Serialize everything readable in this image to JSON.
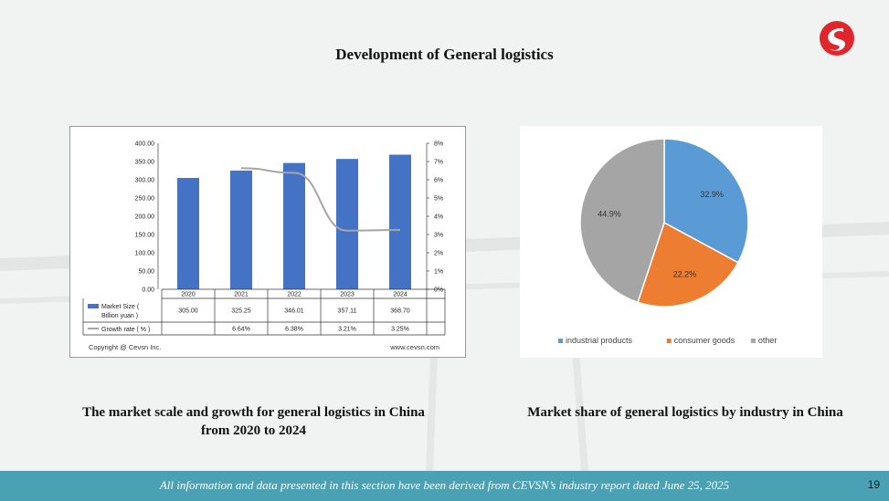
{
  "slide": {
    "title": "Development of General logistics",
    "page_number": "19",
    "footer": "All information and data presented in this section have been derived from CEVSN’s industry report dated June 25, 2025"
  },
  "captions": {
    "left_line1": "The market scale and growth for general logistics in China",
    "left_line2": "from 2020 to 2024",
    "right": "Market share of general logistics by industry in China"
  },
  "colors": {
    "bar": "#4472c4",
    "line": "#a5a5a5",
    "footer": "#4aa1b4",
    "logo": "#e0262b",
    "pie": [
      "#5b9bd5",
      "#ed7d31",
      "#a5a5a5"
    ]
  },
  "bar_chart_footer": {
    "copyright": "Copyright @ Cevsn Inc.",
    "website": "www.cevsn.com"
  },
  "chart_data": [
    {
      "type": "bar",
      "categories": [
        "2020",
        "2021",
        "2022",
        "2023",
        "2024"
      ],
      "series": [
        {
          "name": "Market Size ( Billion yuan )",
          "values": [
            305.0,
            325.25,
            346.01,
            357.11,
            368.7
          ],
          "labels": [
            "305.00",
            "325.25",
            "346.01",
            "357.11",
            "368.70"
          ]
        },
        {
          "name": "Growth rate ( % )",
          "type": "line",
          "axis": "right",
          "values": [
            null,
            6.64,
            6.38,
            3.21,
            3.25
          ],
          "labels": [
            "",
            "6.64%",
            "6.38%",
            "3.21%",
            "3.25%"
          ]
        }
      ],
      "y_left": {
        "ticks": [
          "0.00",
          "50.00",
          "100.00",
          "150.00",
          "200.00",
          "250.00",
          "300.00",
          "350.00",
          "400.00"
        ],
        "range": [
          0,
          400
        ]
      },
      "y_right": {
        "ticks": [
          "0%",
          "1%",
          "2%",
          "3%",
          "4%",
          "5%",
          "6%",
          "7%",
          "8%"
        ],
        "range": [
          0,
          8
        ]
      },
      "grid": false
    },
    {
      "type": "pie",
      "slices": [
        {
          "name": "industrial products",
          "value": 32.9,
          "label": "32.9%"
        },
        {
          "name": "consumer goods",
          "value": 22.2,
          "label": "22.2%"
        },
        {
          "name": "other",
          "value": 44.9,
          "label": "44.9%"
        }
      ],
      "legend": "bottom"
    }
  ]
}
